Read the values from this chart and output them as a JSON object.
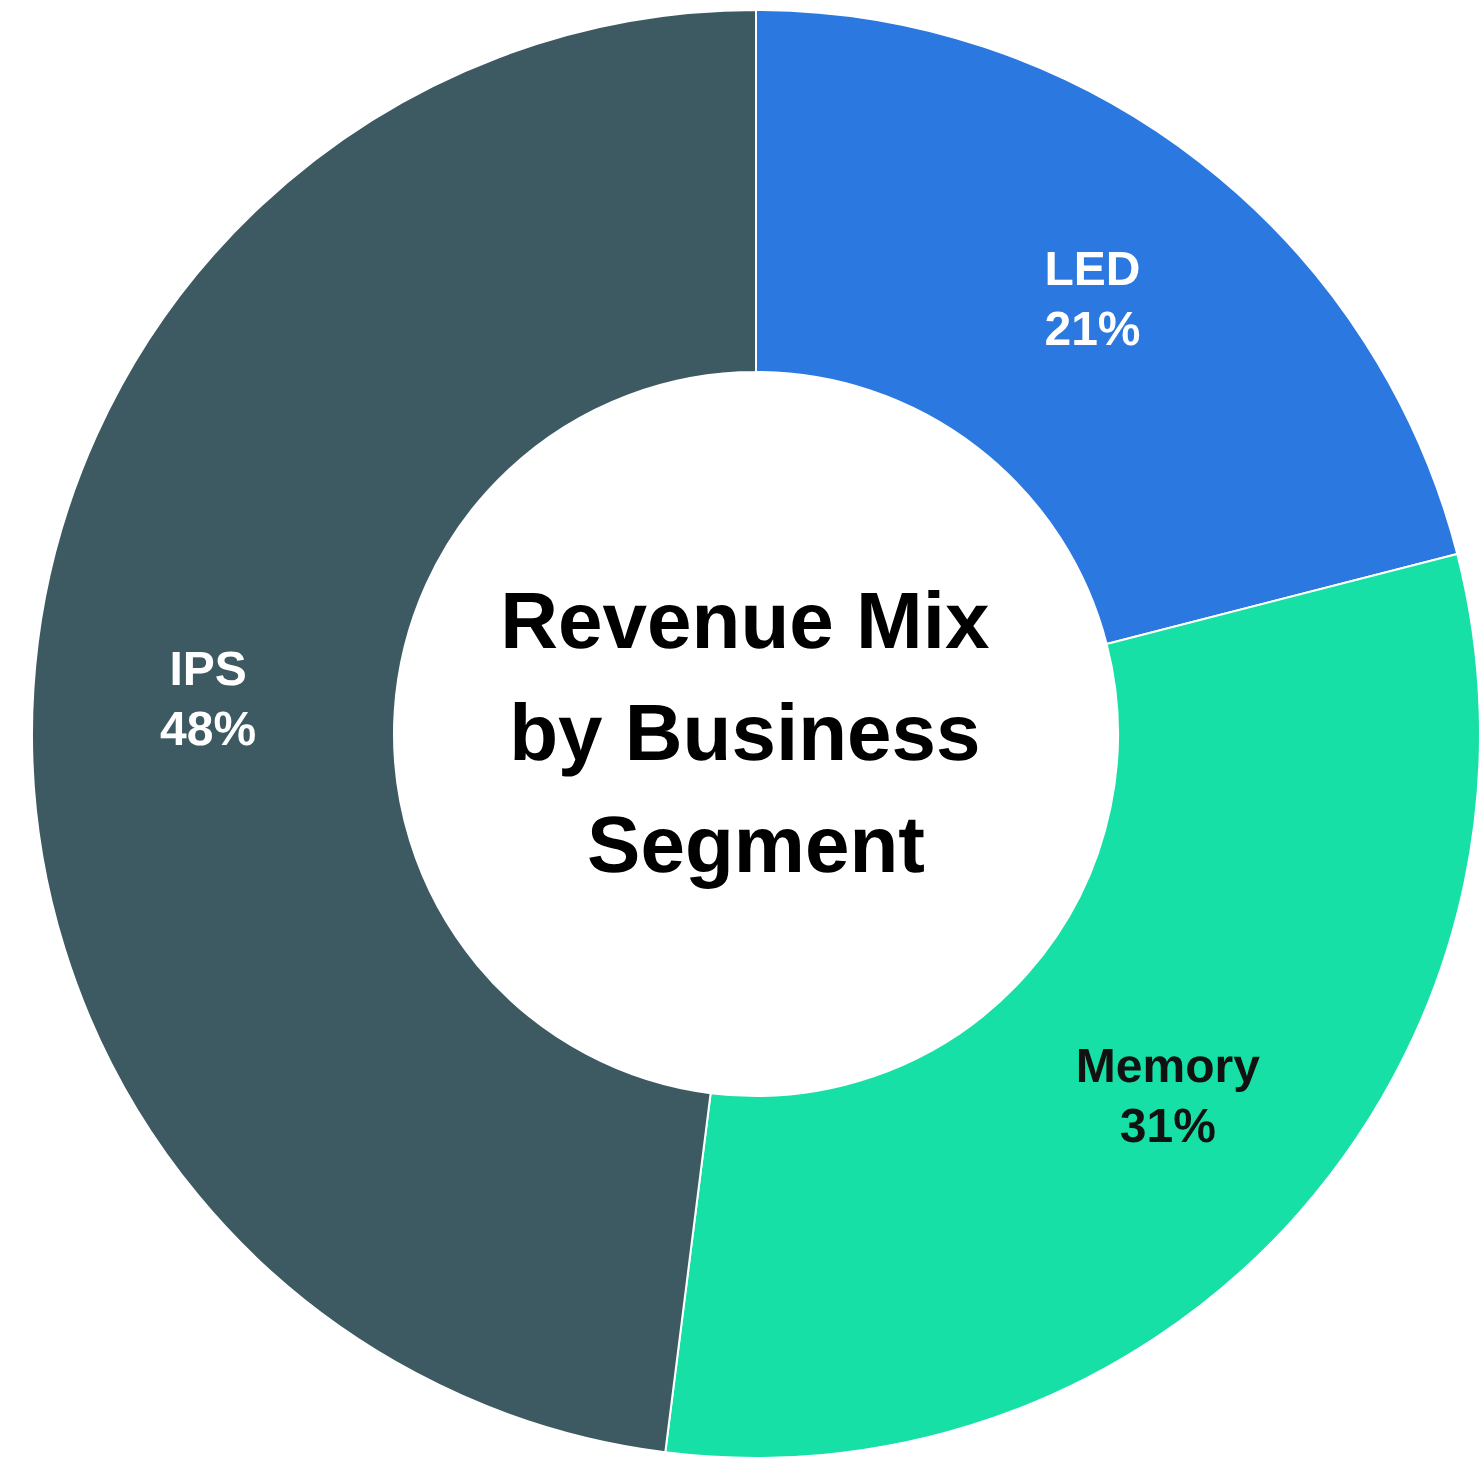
{
  "chart_data": {
    "type": "donut",
    "title": "Revenue Mix by Business Segment",
    "categories": [
      "LED",
      "Memory",
      "IPS"
    ],
    "values": [
      21,
      31,
      48
    ],
    "value_labels": [
      "21%",
      "31%",
      "48%"
    ],
    "colors": [
      "#2a78e0",
      "#16e0a6",
      "#3d5a63"
    ],
    "legend": false
  }
}
